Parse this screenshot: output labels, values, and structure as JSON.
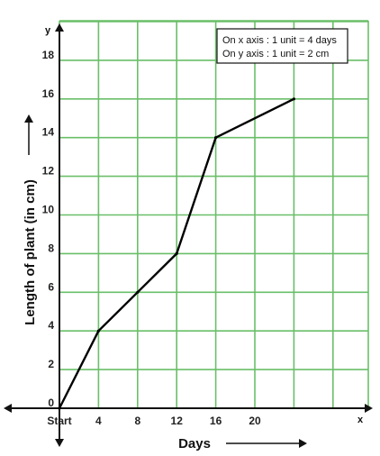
{
  "chart_data": {
    "type": "line",
    "xlabel": "Days",
    "ylabel": "Length of plant (in cm)",
    "x_axis_letter": "x",
    "y_axis_letter": "y",
    "xlim": [
      0,
      28
    ],
    "ylim": [
      0,
      19
    ],
    "x_ticks": [
      {
        "value": 0,
        "label": "Start"
      },
      {
        "value": 4,
        "label": "4"
      },
      {
        "value": 8,
        "label": "8"
      },
      {
        "value": 12,
        "label": "12"
      },
      {
        "value": 16,
        "label": "16"
      },
      {
        "value": 20,
        "label": "20"
      }
    ],
    "y_ticks": [
      0,
      2,
      4,
      6,
      8,
      10,
      12,
      14,
      16,
      18
    ],
    "grid": true,
    "grid_color": "#6abf69",
    "series": [
      {
        "x": [
          0,
          4,
          8,
          12,
          16,
          24
        ],
        "y": [
          0,
          4,
          6,
          8,
          14,
          16
        ],
        "color": "#000000"
      }
    ],
    "legend_position": "top-right",
    "scale_note": [
      "On x axis : 1 unit = 4 days",
      "On y axis : 1 unit = 2 cm"
    ]
  }
}
